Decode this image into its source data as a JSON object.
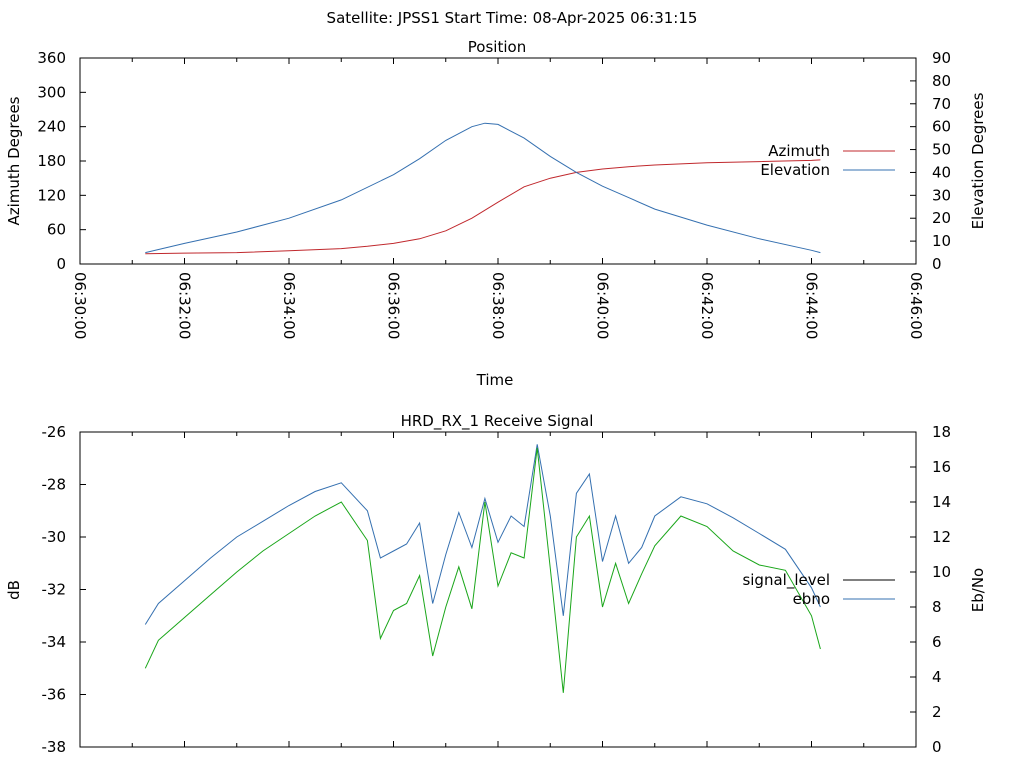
{
  "header": {
    "title": "Satellite: JPSS1    Start Time: 08-Apr-2025 06:31:15"
  },
  "chart_data": [
    {
      "type": "line",
      "title": "Position",
      "xlabel": "Time",
      "ylabel": "Azimuth Degrees",
      "y2label": "Elevation Degrees",
      "x_ticks": [
        "06:30:00",
        "06:32:00",
        "06:34:00",
        "06:36:00",
        "06:38:00",
        "06:40:00",
        "06:42:00",
        "06:44:00",
        "06:46:00"
      ],
      "xlim_minutes_after_0630": [
        0,
        16
      ],
      "ylim": [
        0,
        360
      ],
      "y_ticks": [
        0,
        60,
        120,
        180,
        240,
        300,
        360
      ],
      "y2lim": [
        0,
        90
      ],
      "y2_ticks": [
        0,
        10,
        20,
        30,
        40,
        50,
        60,
        70,
        80,
        90
      ],
      "legend_position": "right",
      "series": [
        {
          "name": "Azimuth",
          "axis": "y",
          "color": "#c0282d",
          "x_minutes_after_0630": [
            1.25,
            2,
            3,
            4,
            5,
            5.5,
            6,
            6.5,
            7,
            7.5,
            8,
            8.5,
            9,
            9.5,
            10,
            10.5,
            11,
            12,
            13,
            14,
            14.17
          ],
          "values": [
            18,
            19,
            20,
            23,
            27,
            31,
            36,
            44,
            58,
            80,
            108,
            135,
            150,
            160,
            166,
            170,
            173,
            177,
            179,
            181,
            182
          ]
        },
        {
          "name": "Elevation",
          "axis": "y2",
          "color": "#3570b0",
          "x_minutes_after_0630": [
            1.25,
            2,
            3,
            4,
            5,
            6,
            6.5,
            7,
            7.5,
            7.75,
            8,
            8.5,
            9,
            9.5,
            10,
            10.5,
            11,
            12,
            13,
            14,
            14.17
          ],
          "values": [
            5,
            9,
            14,
            20,
            28,
            39,
            46,
            54,
            60,
            61.5,
            61,
            55,
            47,
            40,
            34,
            29,
            24,
            17,
            11,
            6,
            5
          ]
        }
      ]
    },
    {
      "type": "line",
      "title": "HRD_RX_1 Receive Signal",
      "ylabel": "dB",
      "y2label": "Eb/No",
      "x_ticks": [],
      "xlim_minutes_after_0630": [
        0,
        16
      ],
      "ylim": [
        -38,
        -26
      ],
      "y_ticks": [
        -38,
        -36,
        -34,
        -32,
        -30,
        -28,
        -26
      ],
      "y2lim": [
        0,
        18
      ],
      "y2_ticks": [
        0,
        2,
        4,
        6,
        8,
        10,
        12,
        14,
        16,
        18
      ],
      "legend_position": "right",
      "series": [
        {
          "name": "signal_level",
          "axis": "y",
          "color": "#000000",
          "x_minutes_after_0630": [],
          "values": []
        },
        {
          "name": "ebno",
          "axis": "y2",
          "color": "#3570b0",
          "x_minutes_after_0630": [
            1.25,
            1.5,
            2,
            2.5,
            3,
            3.5,
            4,
            4.5,
            5,
            5.5,
            5.75,
            6,
            6.25,
            6.5,
            6.75,
            7,
            7.25,
            7.5,
            7.75,
            8,
            8.25,
            8.5,
            8.75,
            9,
            9.25,
            9.5,
            9.75,
            10,
            10.25,
            10.5,
            10.75,
            11,
            11.5,
            12,
            12.5,
            13,
            13.5,
            14,
            14.17
          ],
          "values": [
            7,
            8.2,
            9.5,
            10.8,
            12,
            12.9,
            13.8,
            14.6,
            15.1,
            13.5,
            10.8,
            11.2,
            11.6,
            12.8,
            8.2,
            11,
            13.4,
            11.4,
            14.2,
            11.7,
            13.2,
            12.6,
            17.3,
            13.2,
            7.5,
            14.5,
            15.6,
            10.6,
            13.2,
            10.5,
            11.4,
            13.2,
            14.3,
            13.9,
            13.1,
            12.2,
            11.3,
            9.1,
            8
          ]
        },
        {
          "name": "",
          "axis": "y2",
          "color": "#1aa61a",
          "x_minutes_after_0630": [
            1.25,
            1.5,
            2,
            2.5,
            3,
            3.5,
            4,
            4.5,
            5,
            5.5,
            5.75,
            6,
            6.25,
            6.5,
            6.75,
            7,
            7.25,
            7.5,
            7.75,
            8,
            8.25,
            8.5,
            8.75,
            9,
            9.25,
            9.5,
            9.75,
            10,
            10.25,
            10.5,
            10.75,
            11,
            11.5,
            12,
            12.5,
            13,
            13.5,
            14,
            14.17
          ],
          "values": [
            4.5,
            6.1,
            7.4,
            8.7,
            10,
            11.2,
            12.2,
            13.2,
            14,
            11.8,
            6.2,
            7.8,
            8.2,
            9.8,
            5.2,
            8,
            10.3,
            7.9,
            14,
            9.2,
            11.1,
            10.8,
            17.1,
            10.2,
            3.1,
            12,
            13.2,
            8,
            10.5,
            8.2,
            9.9,
            11.5,
            13.2,
            12.6,
            11.2,
            10.4,
            10.1,
            7.5,
            5.6
          ]
        }
      ]
    }
  ]
}
